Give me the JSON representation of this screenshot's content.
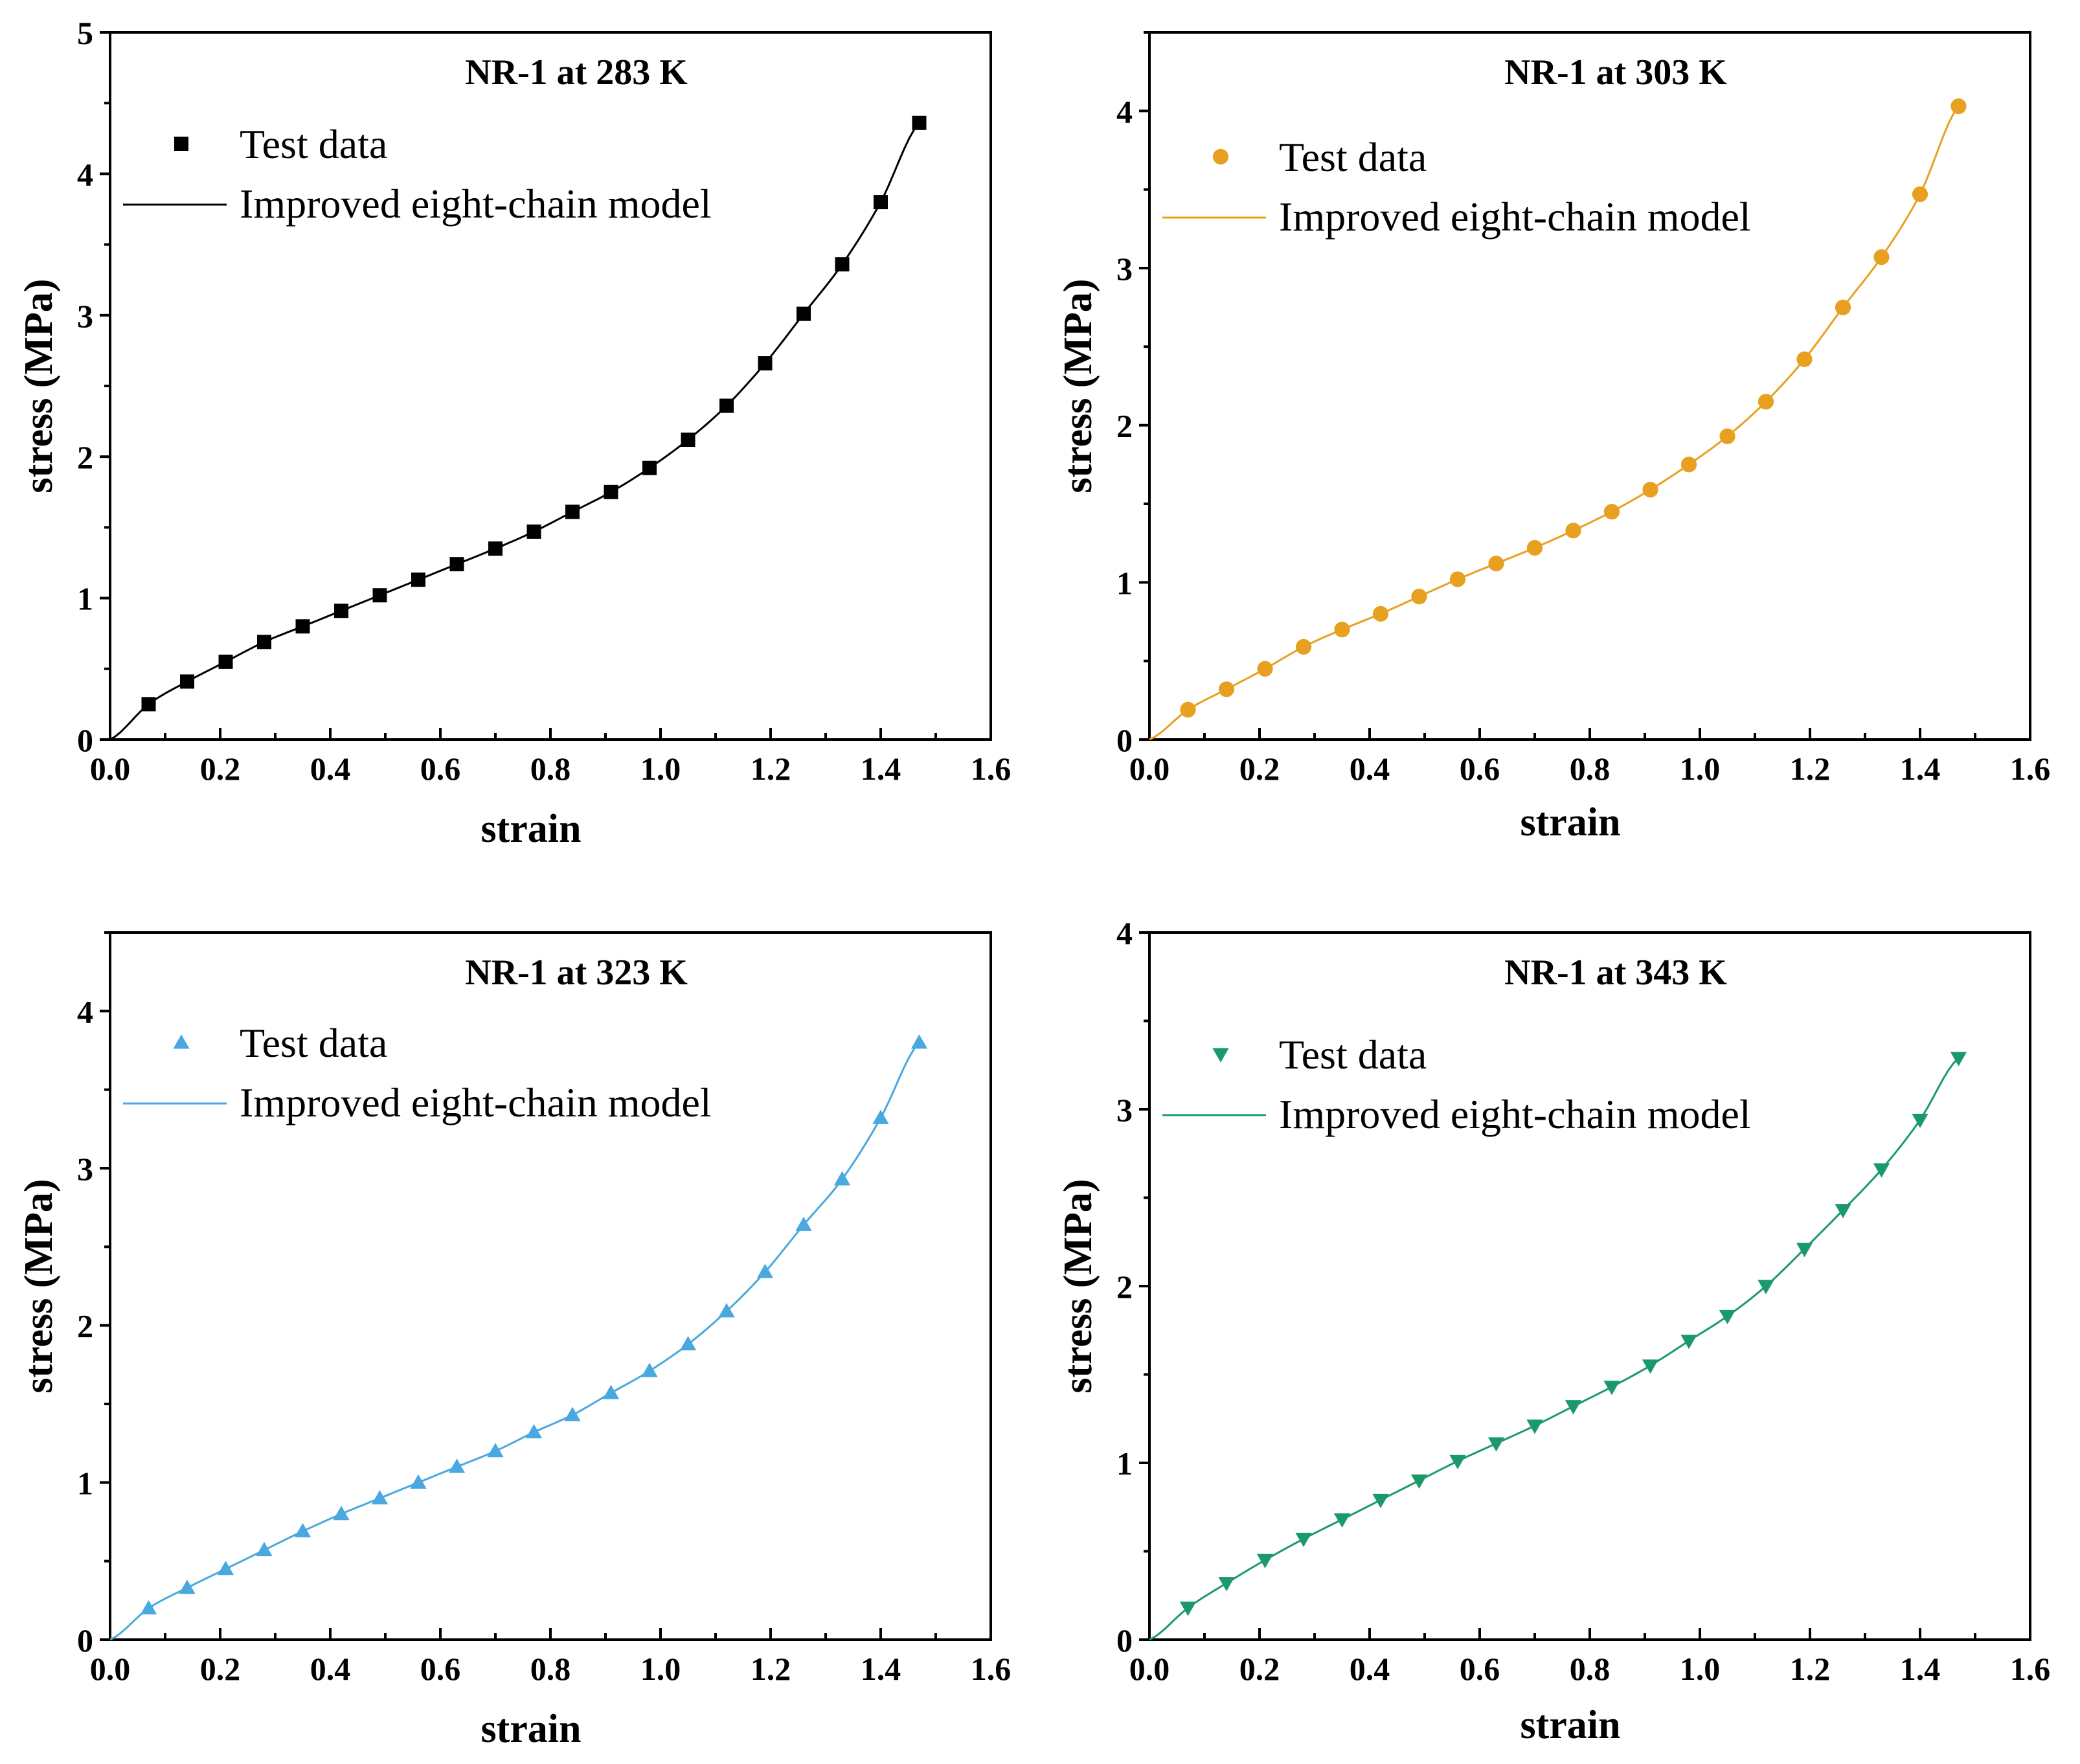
{
  "chart_data": [
    {
      "type": "scatter",
      "title": "NR-1 at 283 K",
      "xlabel": "strain",
      "ylabel": "stress (MPa)",
      "xlim": [
        0,
        1.6
      ],
      "ylim": [
        0,
        5
      ],
      "xticks": [
        "0.0",
        "0.2",
        "0.4",
        "0.6",
        "0.8",
        "1.0",
        "1.2",
        "1.4",
        "1.6"
      ],
      "yticks": [
        "0",
        "1",
        "2",
        "3",
        "4",
        "5"
      ],
      "color": "#000000",
      "marker": "square",
      "legend": {
        "test_label": "Test data",
        "model_label": "Improved eight-chain model",
        "position": "top-left"
      },
      "x": [
        0.07,
        0.14,
        0.21,
        0.28,
        0.35,
        0.42,
        0.49,
        0.56,
        0.63,
        0.7,
        0.77,
        0.84,
        0.91,
        0.98,
        1.05,
        1.12,
        1.19,
        1.26,
        1.33,
        1.4,
        1.47
      ],
      "y": [
        0.25,
        0.41,
        0.55,
        0.69,
        0.8,
        0.91,
        1.02,
        1.13,
        1.24,
        1.35,
        1.47,
        1.61,
        1.75,
        1.92,
        2.12,
        2.36,
        2.66,
        3.01,
        3.36,
        3.8,
        4.36
      ]
    },
    {
      "type": "scatter",
      "title": "NR-1 at 303 K",
      "xlabel": "strain",
      "ylabel": "stress (MPa)",
      "xlim": [
        0,
        1.6
      ],
      "ylim": [
        0,
        4.5
      ],
      "xticks": [
        "0.0",
        "0.2",
        "0.4",
        "0.6",
        "0.8",
        "1.0",
        "1.2",
        "1.4",
        "1.6"
      ],
      "yticks": [
        "0",
        "1",
        "2",
        "3",
        "4"
      ],
      "color": "#e8a020",
      "marker": "circle",
      "legend": {
        "test_label": "Test data",
        "model_label": "Improved eight-chain model",
        "position": "top-left"
      },
      "x": [
        0.07,
        0.14,
        0.21,
        0.28,
        0.35,
        0.42,
        0.49,
        0.56,
        0.63,
        0.7,
        0.77,
        0.84,
        0.91,
        0.98,
        1.05,
        1.12,
        1.19,
        1.26,
        1.33,
        1.4,
        1.47
      ],
      "y": [
        0.19,
        0.32,
        0.45,
        0.59,
        0.7,
        0.8,
        0.91,
        1.02,
        1.12,
        1.22,
        1.33,
        1.45,
        1.59,
        1.75,
        1.93,
        2.15,
        2.42,
        2.75,
        3.07,
        3.47,
        4.03
      ]
    },
    {
      "type": "scatter",
      "title": "NR-1 at 323 K",
      "xlabel": "strain",
      "ylabel": "stress (MPa)",
      "xlim": [
        0,
        1.6
      ],
      "ylim": [
        0,
        4.5
      ],
      "xticks": [
        "0.0",
        "0.2",
        "0.4",
        "0.6",
        "0.8",
        "1.0",
        "1.2",
        "1.4",
        "1.6"
      ],
      "yticks": [
        "0",
        "1",
        "2",
        "3",
        "4"
      ],
      "color": "#4aa8e0",
      "marker": "triangle-up",
      "legend": {
        "test_label": "Test data",
        "model_label": "Improved eight-chain model",
        "position": "top-left"
      },
      "x": [
        0.07,
        0.14,
        0.21,
        0.28,
        0.35,
        0.42,
        0.49,
        0.56,
        0.63,
        0.7,
        0.77,
        0.84,
        0.91,
        0.98,
        1.05,
        1.12,
        1.19,
        1.26,
        1.33,
        1.4,
        1.47
      ],
      "y": [
        0.2,
        0.33,
        0.45,
        0.57,
        0.69,
        0.8,
        0.9,
        1.0,
        1.1,
        1.2,
        1.32,
        1.43,
        1.57,
        1.71,
        1.88,
        2.09,
        2.34,
        2.64,
        2.93,
        3.32,
        3.8
      ]
    },
    {
      "type": "scatter",
      "title": "NR-1 at 343 K",
      "xlabel": "strain",
      "ylabel": "stress (MPa)",
      "xlim": [
        0,
        1.6
      ],
      "ylim": [
        0,
        4
      ],
      "xticks": [
        "0.0",
        "0.2",
        "0.4",
        "0.6",
        "0.8",
        "1.0",
        "1.2",
        "1.4",
        "1.6"
      ],
      "yticks": [
        "0",
        "1",
        "2",
        "3",
        "4"
      ],
      "color": "#1a9a6a",
      "marker": "triangle-down",
      "legend": {
        "test_label": "Test data",
        "model_label": "Improved eight-chain model",
        "position": "top-left"
      },
      "x": [
        0.07,
        0.14,
        0.21,
        0.28,
        0.35,
        0.42,
        0.49,
        0.56,
        0.63,
        0.7,
        0.77,
        0.84,
        0.91,
        0.98,
        1.05,
        1.12,
        1.19,
        1.26,
        1.33,
        1.4,
        1.47
      ],
      "y": [
        0.18,
        0.32,
        0.45,
        0.57,
        0.68,
        0.79,
        0.9,
        1.01,
        1.11,
        1.21,
        1.32,
        1.43,
        1.55,
        1.69,
        1.83,
        2.0,
        2.21,
        2.43,
        2.66,
        2.94,
        3.29
      ]
    }
  ]
}
